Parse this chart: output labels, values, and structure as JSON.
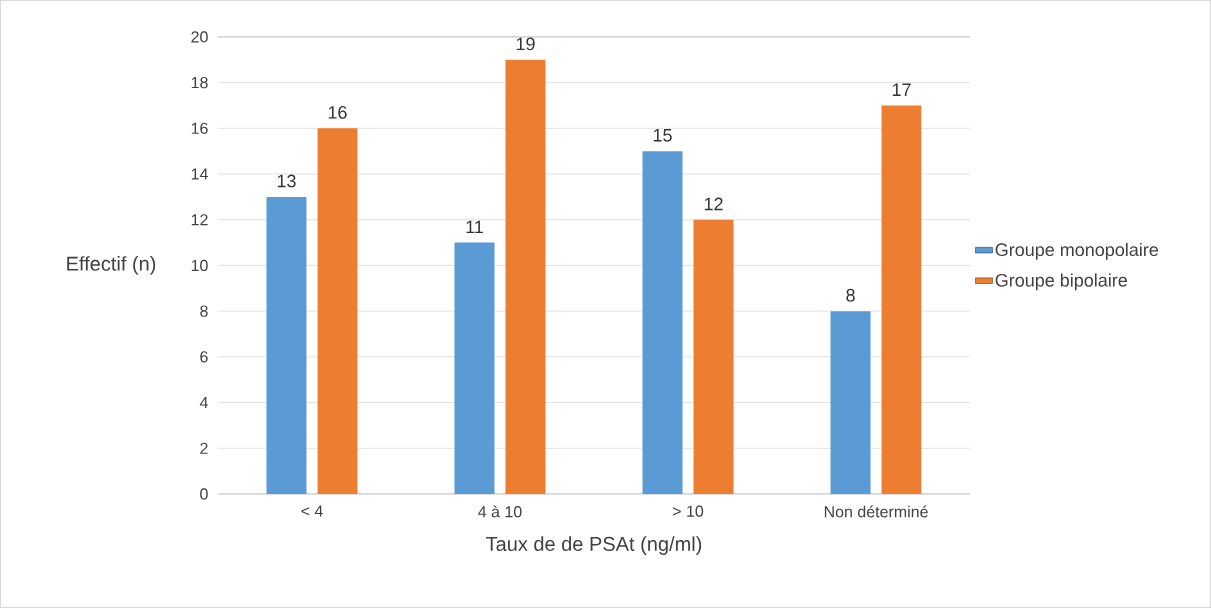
{
  "chart_data": {
    "type": "bar",
    "xlabel": "Taux de de PSAt (ng/ml)",
    "ylabel": "Effectif (n)",
    "categories": [
      "< 4",
      "4 à 10",
      "> 10",
      "Non déterminé"
    ],
    "series": [
      {
        "name": "Groupe monopolaire",
        "color": "#5b9bd5",
        "values": [
          13,
          11,
          15,
          8
        ]
      },
      {
        "name": "Groupe bipolaire",
        "color": "#ed7d31",
        "values": [
          16,
          19,
          12,
          17
        ]
      }
    ],
    "ylim": [
      0,
      20
    ],
    "yticks": [
      0,
      2,
      4,
      6,
      8,
      10,
      12,
      14,
      16,
      18,
      20
    ],
    "grid": "y",
    "legend": "right",
    "data_labels": true
  }
}
